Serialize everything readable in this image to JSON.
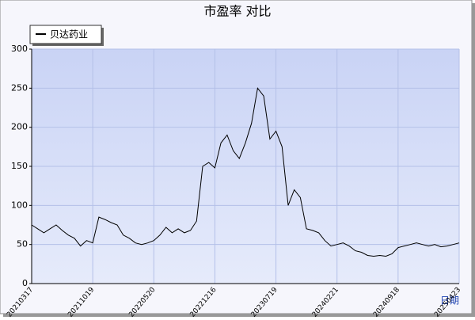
{
  "chart_data": {
    "type": "line",
    "title": "市盈率  对比",
    "x_label": "日期",
    "categories": [
      "20210317",
      null,
      null,
      null,
      null,
      null,
      null,
      null,
      null,
      null,
      "20211019",
      null,
      null,
      null,
      null,
      null,
      null,
      null,
      null,
      null,
      "20220520",
      null,
      null,
      null,
      null,
      null,
      null,
      null,
      null,
      null,
      "20221216",
      null,
      null,
      null,
      null,
      null,
      null,
      null,
      null,
      null,
      "20230719",
      null,
      null,
      null,
      null,
      null,
      null,
      null,
      null,
      null,
      "20240221",
      null,
      null,
      null,
      null,
      null,
      null,
      null,
      null,
      null,
      "20240918",
      null,
      null,
      null,
      null,
      null,
      null,
      null,
      null,
      null,
      "20250423"
    ],
    "series": [
      {
        "name": "贝达药业",
        "color": "#000000",
        "values": [
          75,
          70,
          65,
          70,
          75,
          68,
          62,
          58,
          48,
          55,
          52,
          85,
          82,
          78,
          75,
          62,
          58,
          52,
          50,
          52,
          55,
          62,
          72,
          65,
          70,
          65,
          68,
          80,
          150,
          155,
          148,
          180,
          190,
          170,
          160,
          180,
          205,
          250,
          240,
          185,
          195,
          175,
          100,
          120,
          110,
          70,
          68,
          65,
          55,
          48,
          50,
          52,
          48,
          42,
          40,
          36,
          35,
          36,
          35,
          38,
          46,
          48,
          50,
          52,
          50,
          48,
          50,
          47,
          48,
          50,
          52
        ]
      }
    ],
    "ylim": [
      0,
      300
    ],
    "yticks": [
      0,
      50,
      100,
      150,
      200,
      250,
      300
    ],
    "grid": true,
    "legend": "top-left"
  }
}
